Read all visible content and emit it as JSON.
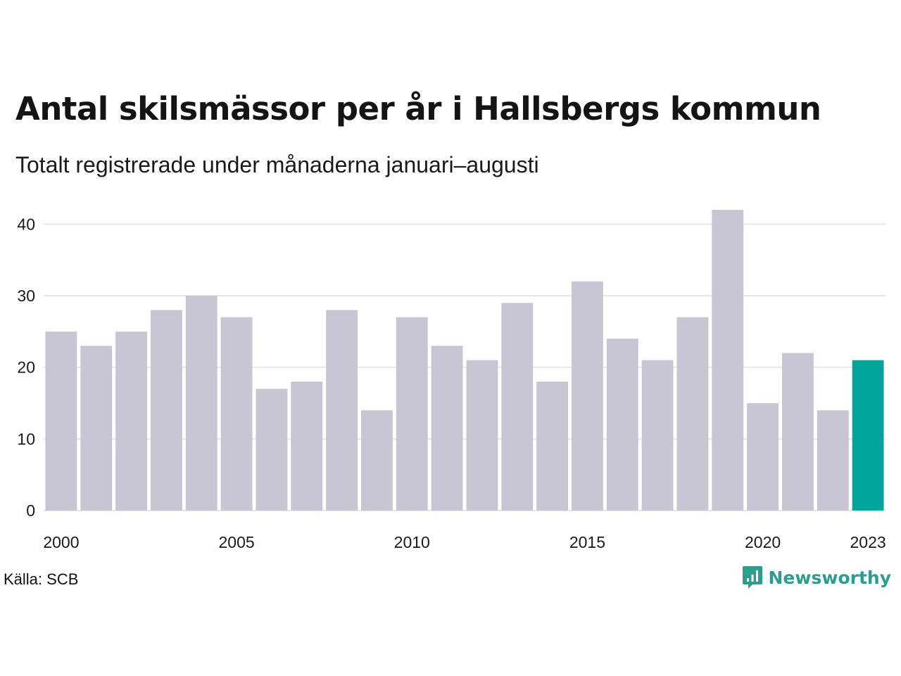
{
  "title": "Antal skilsmässor per år i Hallsbergs kommun",
  "subtitle": "Totalt registrerade under månaderna januari–augusti",
  "source": "Källa: SCB",
  "brand": {
    "name": "Newsworthy",
    "icon": "newsworthy-logo-icon"
  },
  "colors": {
    "bar": "#c8c6d2",
    "highlight": "#00a59a",
    "grid": "#e6e6e6",
    "text": "#1a1a1a"
  },
  "chart_data": {
    "type": "bar",
    "title": "Antal skilsmässor per år i Hallsbergs kommun",
    "subtitle": "Totalt registrerade under månaderna januari–augusti",
    "xlabel": "",
    "ylabel": "",
    "categories": [
      2000,
      2001,
      2002,
      2003,
      2004,
      2005,
      2006,
      2007,
      2008,
      2009,
      2010,
      2011,
      2012,
      2013,
      2014,
      2015,
      2016,
      2017,
      2018,
      2019,
      2020,
      2021,
      2022,
      2023
    ],
    "values": [
      25,
      23,
      25,
      28,
      30,
      27,
      17,
      18,
      28,
      14,
      27,
      23,
      21,
      29,
      18,
      32,
      24,
      21,
      27,
      42,
      15,
      22,
      14,
      21
    ],
    "highlight_category": 2023,
    "ylim": [
      0,
      42
    ],
    "yticks": [
      0,
      10,
      20,
      30,
      40
    ],
    "xticks": [
      2000,
      2005,
      2010,
      2015,
      2020,
      2023
    ],
    "grid": true,
    "legend": "none"
  }
}
